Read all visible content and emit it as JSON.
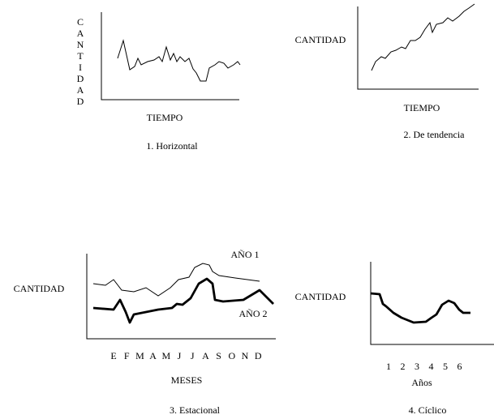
{
  "panels": [
    {
      "y_label": "CANTIDAD",
      "x_label": "TIEMPO",
      "caption": "1. Horizontal"
    },
    {
      "y_label": "CANTIDAD",
      "x_label": "TIEMPO",
      "caption": "2. De tendencia"
    },
    {
      "y_label": "CANTIDAD",
      "x_label": "MESES",
      "caption": "3. Estacional",
      "series_labels": [
        "AÑO 1",
        "AÑO 2"
      ],
      "ticks": [
        "E",
        "F",
        "M",
        "A",
        "M",
        "J",
        "J",
        "A",
        "S",
        "O",
        "N",
        "D"
      ]
    },
    {
      "y_label": "CANTIDAD",
      "x_label": "Años",
      "caption": "4. Cíclico",
      "ticks": [
        "1",
        "2",
        "3",
        "4",
        "5",
        "6"
      ]
    }
  ]
}
